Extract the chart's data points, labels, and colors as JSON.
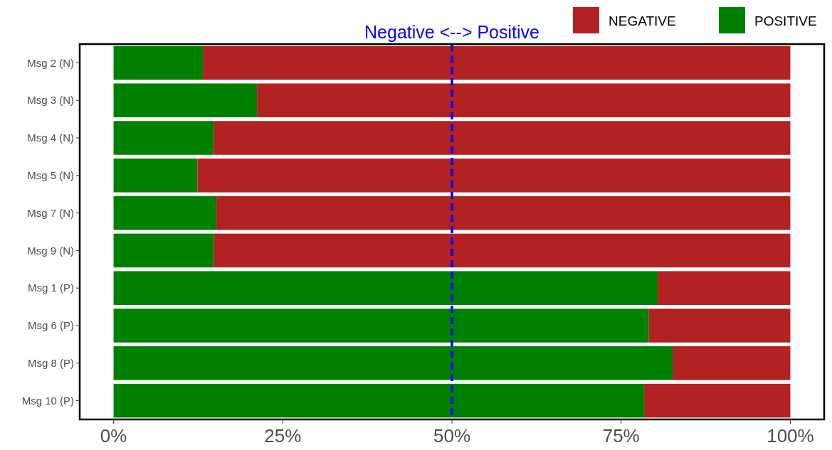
{
  "chart_data": {
    "type": "bar",
    "orientation": "horizontal",
    "stacked": true,
    "categories": [
      "Msg 2 (N)",
      "Msg 3 (N)",
      "Msg 4 (N)",
      "Msg 5 (N)",
      "Msg 7 (N)",
      "Msg 9 (N)",
      "Msg 1 (P)",
      "Msg 6 (P)",
      "Msg 8 (P)",
      "Msg 10 (P)"
    ],
    "series": [
      {
        "name": "POSITIVE",
        "color": "#008000",
        "values": [
          13.2,
          21.2,
          14.8,
          12.4,
          15.2,
          14.8,
          80.4,
          79.1,
          82.6,
          78.4
        ]
      },
      {
        "name": "NEGATIVE",
        "color": "#b22222",
        "values": [
          86.8,
          78.8,
          85.2,
          87.6,
          84.8,
          85.2,
          19.6,
          20.9,
          17.4,
          21.6
        ]
      }
    ],
    "xlim": [
      -5,
      105
    ],
    "xticks": [
      {
        "value": 0,
        "label": "0%"
      },
      {
        "value": 25,
        "label": "25%"
      },
      {
        "value": 50,
        "label": "50%"
      },
      {
        "value": 75,
        "label": "75%"
      },
      {
        "value": 100,
        "label": "100%"
      }
    ],
    "ref_lines": [
      {
        "axis": "x",
        "value": 50,
        "label": "Negative <--> Positive",
        "color": "#0000ff",
        "line_style": "dashed"
      }
    ],
    "grid": false,
    "legend": "top right"
  }
}
